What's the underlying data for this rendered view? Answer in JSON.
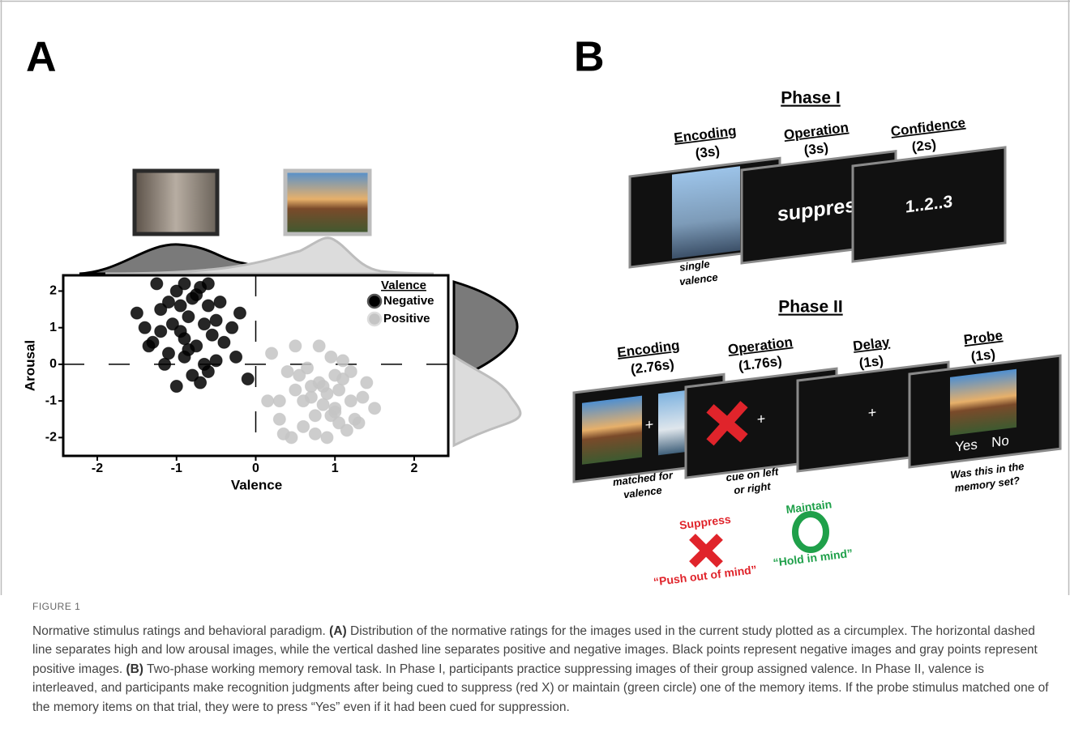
{
  "panel_labels": [
    "A",
    "B"
  ],
  "chart_data": {
    "type": "scatter",
    "xlabel": "Valence",
    "ylabel": "Arousal",
    "xlim": [
      -2.43,
      2.43
    ],
    "ylim": [
      -2.5,
      2.43
    ],
    "xticks": [
      -2,
      -1,
      0,
      1,
      2
    ],
    "yticks": [
      -2,
      -1,
      0,
      1,
      2
    ],
    "hline": 0,
    "vline": 0,
    "legend_title": "Valence",
    "series": [
      {
        "name": "Negative",
        "color": "#000000",
        "x": [
          -1.4,
          -1.2,
          -1.0,
          -0.9,
          -0.8,
          -0.7,
          -0.6,
          -0.5,
          -1.3,
          -1.1,
          -0.95,
          -0.85,
          -0.75,
          -0.65,
          -0.55,
          -0.45,
          -1.5,
          -1.25,
          -1.05,
          -0.9,
          -0.8,
          -0.7,
          -0.6,
          -1.15,
          -1.0,
          -0.85,
          -0.5,
          -0.4,
          -0.3,
          -0.2,
          -0.1,
          -1.35,
          -0.95,
          -0.75,
          -1.2,
          -0.65,
          -1.1,
          -0.25,
          -0.6,
          -0.9
        ],
        "y": [
          1.0,
          1.5,
          2.0,
          2.2,
          1.8,
          2.1,
          1.6,
          1.2,
          0.6,
          0.3,
          0.9,
          1.3,
          0.5,
          0.0,
          0.8,
          1.7,
          1.4,
          2.2,
          1.1,
          0.2,
          -0.3,
          -0.5,
          -0.2,
          0.0,
          -0.6,
          0.4,
          0.1,
          0.6,
          1.0,
          1.4,
          -0.4,
          0.5,
          1.6,
          1.9,
          0.9,
          1.1,
          1.7,
          0.2,
          2.2,
          0.7
        ]
      },
      {
        "name": "Positive",
        "color": "#c4c4c4",
        "x": [
          0.2,
          0.3,
          0.4,
          0.5,
          0.6,
          0.7,
          0.8,
          0.9,
          1.0,
          1.1,
          1.2,
          1.3,
          1.4,
          1.5,
          0.35,
          0.55,
          0.75,
          0.95,
          1.15,
          1.35,
          0.45,
          0.65,
          0.85,
          1.05,
          1.25,
          0.6,
          0.8,
          1.0,
          0.9,
          0.7,
          1.1,
          0.5,
          0.3,
          1.2,
          0.95,
          0.85,
          1.0,
          0.75,
          0.15,
          1.05
        ],
        "y": [
          0.3,
          -1.5,
          -0.2,
          0.5,
          -1.0,
          -0.6,
          0.5,
          -0.8,
          -1.3,
          -0.4,
          -1.0,
          -1.6,
          -0.5,
          -1.2,
          -1.9,
          -0.3,
          -1.4,
          0.2,
          -1.8,
          -0.9,
          -2.0,
          -0.1,
          -1.1,
          -0.7,
          -1.5,
          -1.7,
          -0.5,
          -1.2,
          -2.0,
          -0.9,
          0.1,
          -0.7,
          -1.0,
          -0.2,
          -1.4,
          -0.6,
          -0.3,
          -1.9,
          -1.0,
          -1.6
        ]
      }
    ]
  },
  "panel_b": {
    "phase_1": {
      "title": "Phase I",
      "stages": [
        {
          "name": "Encoding",
          "duration": "(3s)"
        },
        {
          "name": "Operation",
          "duration": "(3s)"
        },
        {
          "name": "Confidence",
          "duration": "(2s)"
        }
      ],
      "screen_texts": [
        "suppress",
        "1..2..3"
      ],
      "caption": [
        "single",
        "valence"
      ]
    },
    "phase_2": {
      "title": "Phase II",
      "stages": [
        {
          "name": "Encoding",
          "duration": "(2.76s)"
        },
        {
          "name": "Operation",
          "duration": "(1.76s)"
        },
        {
          "name": "Delay",
          "duration": "(1s)"
        },
        {
          "name": "Probe",
          "duration": "(1s)"
        }
      ],
      "fixation": "+",
      "response_options": [
        "Yes",
        "No"
      ],
      "captions": [
        [
          "matched for",
          "valence"
        ],
        [
          "cue on left",
          "or right"
        ],
        [
          "Was this in the",
          "memory set?"
        ]
      ]
    },
    "legend": [
      {
        "label": "Suppress",
        "description": "“Push out of mind”",
        "color": "#e0242b"
      },
      {
        "label": "Maintain",
        "description": "“Hold in mind”",
        "color": "#1fa04a"
      }
    ]
  },
  "caption": {
    "figure_label": "FIGURE 1",
    "parts": [
      {
        "text": "Normative stimulus ratings and behavioral paradigm."
      },
      {
        "text": "(A)",
        "bold": true
      },
      {
        "text": "Distribution of the normative ratings for the images used in the current study plotted as a circumplex. The horizontal dashed line separates high and low arousal images, while the vertical dashed line separates positive and negative images. Black points represent negative images and gray points represent positive images."
      },
      {
        "text": "(B)",
        "bold": true
      },
      {
        "text": "Two-phase working memory removal task. In Phase I, participants practice suppressing images of their group assigned valence. In Phase II, valence is interleaved, and participants make recognition judgments after being cued to suppress (red X) or maintain (green circle) one of the memory items. If the probe stimulus matched one of the memory items on that trial, they were to press “Yes” even if it had been cued for suppression."
      }
    ]
  }
}
